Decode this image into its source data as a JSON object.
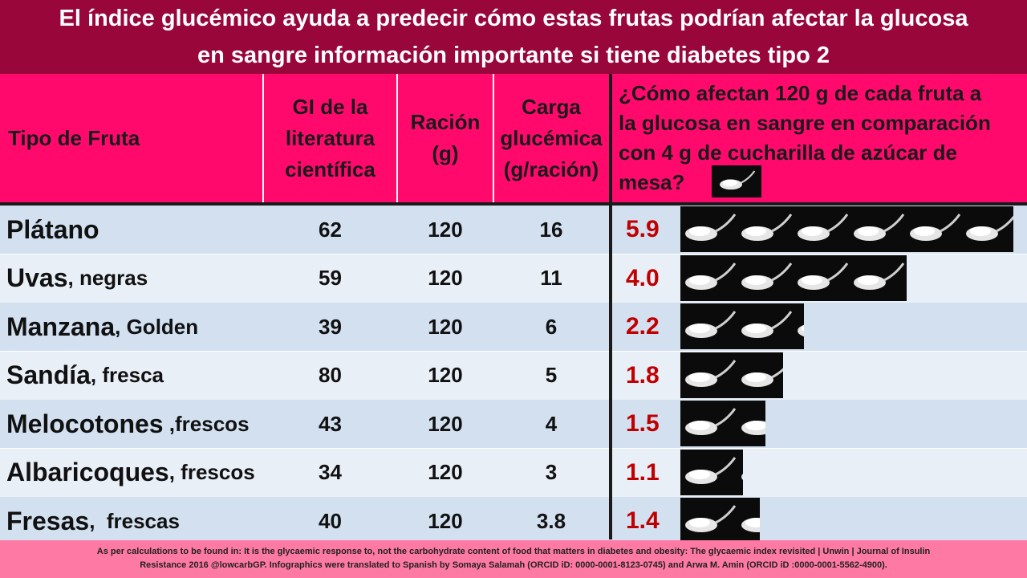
{
  "title": {
    "line1": "El índice glucémico ayuda a predecir cómo estas frutas podrían afectar la glucosa",
    "line2": "en sangre información importante si tiene diabetes tipo 2"
  },
  "headers": {
    "fruit": "Tipo de Fruta",
    "gi": [
      "GI de la",
      "literatura",
      "científica"
    ],
    "portion": [
      "Ración",
      "(g)"
    ],
    "load": [
      "Carga",
      "glucémica",
      "(g/ración)"
    ],
    "question": [
      "¿Cómo afectan 120 g de cada fruta a",
      "la glucosa en sangre en comparación",
      "con 4 g de cucharilla de azúcar de",
      "mesa?"
    ]
  },
  "rows": [
    {
      "fruit": "Plátano",
      "variety": "",
      "gi": "62",
      "portion": "120",
      "load": "16",
      "ratio": "5.9",
      "spoons": 5.9
    },
    {
      "fruit": "Uvas",
      "variety": ", negras",
      "gi": "59",
      "portion": "120",
      "load": "11",
      "ratio": "4.0",
      "spoons": 4.0
    },
    {
      "fruit": "Manzana",
      "variety": ", Golden",
      "gi": "39",
      "portion": "120",
      "load": "6",
      "ratio": "2.2",
      "spoons": 2.2
    },
    {
      "fruit": "Sandía",
      "variety": ", fresca",
      "gi": "80",
      "portion": "120",
      "load": "5",
      "ratio": "1.8",
      "spoons": 1.8
    },
    {
      "fruit": "Melocotones",
      "variety": " ,frescos",
      "gi": "43",
      "portion": "120",
      "load": "4",
      "ratio": "1.5",
      "spoons": 1.5
    },
    {
      "fruit": "Albaricoques",
      "variety": ", frescos",
      "gi": "34",
      "portion": "120",
      "load": "3",
      "ratio": "1.1",
      "spoons": 1.1
    },
    {
      "fruit": "Fresas",
      "variety": ",  frescas",
      "gi": "40",
      "portion": "120",
      "load": "3.8",
      "ratio": "1.4",
      "spoons": 1.4
    }
  ],
  "footer": {
    "line1": "As per calculations to be found in: It is the glycaemic response to, not the carbohydrate content of food that matters in diabetes and obesity: The glycaemic index revisited | Unwin | Journal of Insulin",
    "line2": "Resistance 2016   @lowcarbGP.  Infographics were translated to Spanish by Somaya Salamah (ORCID iD: 0000-0001-8123-0745)  and Arwa M. Amin (ORCID iD :0000-0001-5562-4900)."
  },
  "icons": {
    "spoon": "sugar-teaspoon-icon"
  },
  "colors": {
    "title_bg": "#98063a",
    "header_bg": "#ff0a6c",
    "row_dark": "#d2e0f0",
    "row_light": "#e9eff7",
    "ratio": "#c00000",
    "footer_bg": "#ff79a5"
  }
}
